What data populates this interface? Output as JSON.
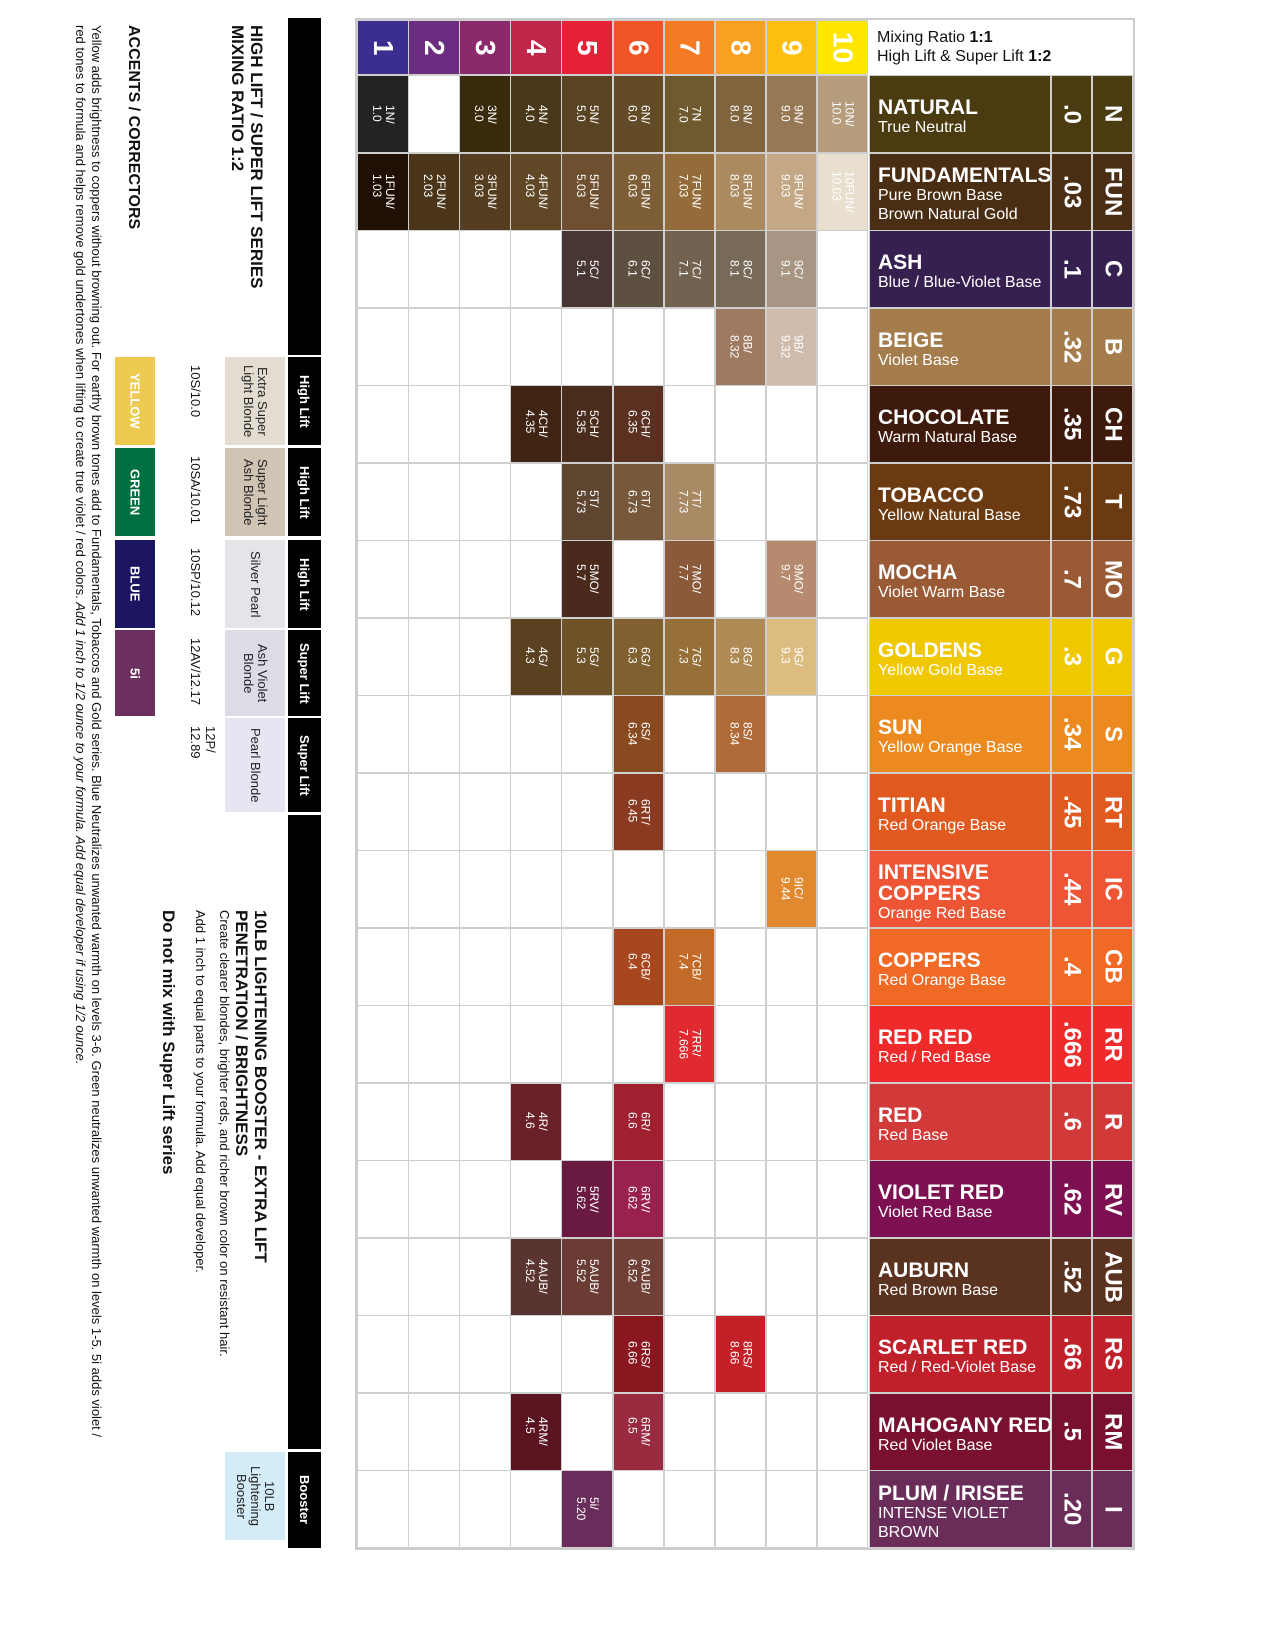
{
  "header": {
    "line1_prefix": "Mixing Ratio ",
    "line1_ratio": "1:1",
    "line2_prefix": "High Lift & Super Lift ",
    "line2_ratio": "1:2"
  },
  "levels": [
    {
      "label": "1",
      "color": "#3a2f90"
    },
    {
      "label": "2",
      "color": "#6a2d80"
    },
    {
      "label": "3",
      "color": "#8a2a6a"
    },
    {
      "label": "4",
      "color": "#c0254a"
    },
    {
      "label": "5",
      "color": "#e52138"
    },
    {
      "label": "6",
      "color": "#f05528"
    },
    {
      "label": "7",
      "color": "#f57a25"
    },
    {
      "label": "8",
      "color": "#f9a020"
    },
    {
      "label": "9",
      "color": "#fdc010"
    },
    {
      "label": "10",
      "color": "#ffe600"
    }
  ],
  "series": [
    {
      "letter": "N",
      "code": ".0",
      "name": "NATURAL",
      "desc": "True Neutral",
      "color": "#4b3b10",
      "cells": {
        "1": {
          "label": "1N/\n1.0",
          "color": "#232122"
        },
        "3": {
          "label": "3N/\n3.0",
          "color": "#3a2a0c"
        },
        "4": {
          "label": "4N/\n4.0",
          "color": "#4a381a"
        },
        "5": {
          "label": "5N/\n5.0",
          "color": "#584322"
        },
        "6": {
          "label": "6N/\n6.0",
          "color": "#644b28"
        },
        "7": {
          "label": "7N\n7.0",
          "color": "#6e5a2e"
        },
        "8": {
          "label": "8N/\n8.0",
          "color": "#80643e"
        },
        "9": {
          "label": "9N/\n9.0",
          "color": "#967954"
        },
        "10": {
          "label": "10N/\n10.0",
          "color": "#b49c7c"
        }
      }
    },
    {
      "letter": "FUN",
      "code": ".03",
      "name": "FUNDAMENTALS",
      "desc": "Pure Brown Base\nBrown Natural Gold",
      "color": "#4a2e14",
      "cells": {
        "1": {
          "label": "1FUN/\n1.03",
          "color": "#200f04"
        },
        "2": {
          "label": "2FUN/\n2.03",
          "color": "#4a3518"
        },
        "3": {
          "label": "3FUN/\n3.03",
          "color": "#553e20"
        },
        "4": {
          "label": "4FUN/\n4.03",
          "color": "#604726"
        },
        "5": {
          "label": "5FUN/\n5.03",
          "color": "#6e5030"
        },
        "6": {
          "label": "6FUN/\n6.03",
          "color": "#7e5e36"
        },
        "7": {
          "label": "7FUN/\n7.03",
          "color": "#946c3a"
        },
        "8": {
          "label": "8FUN/\n8.03",
          "color": "#ab8a60"
        },
        "9": {
          "label": "9FUN/\n9.03",
          "color": "#c4a886"
        },
        "10": {
          "label": "10FUN/\n10.03",
          "color": "#e8dfcf"
        }
      }
    },
    {
      "letter": "C",
      "code": ".1",
      "name": "ASH",
      "desc": "Blue / Blue-Violet Base",
      "color": "#35204f",
      "cells": {
        "5": {
          "label": "5C/\n5.1",
          "color": "#483634"
        },
        "6": {
          "label": "6C/\n6.1",
          "color": "#5e5040"
        },
        "7": {
          "label": "7C/\n7.1",
          "color": "#726250"
        },
        "8": {
          "label": "8C/\n8.1",
          "color": "#786a58"
        },
        "9": {
          "label": "9C/\n9.1",
          "color": "#a89584"
        }
      }
    },
    {
      "letter": "B",
      "code": ".32",
      "name": "BEIGE",
      "desc": "Violet Base",
      "color": "#a57c4c",
      "cells": {
        "8": {
          "label": "8B/\n8.32",
          "color": "#9e7a60"
        },
        "9": {
          "label": "9B/\n9.32",
          "color": "#d0bcad"
        }
      }
    },
    {
      "letter": "CH",
      "code": ".35",
      "name": "CHOCOLATE",
      "desc": "Warm Natural Base",
      "color": "#3d1a0c",
      "cells": {
        "4": {
          "label": "4CH/\n4.35",
          "color": "#3f2414"
        },
        "5": {
          "label": "5CH/\n5.35",
          "color": "#4a2c1c"
        },
        "6": {
          "label": "6CH/\n6.35",
          "color": "#5a3020"
        }
      }
    },
    {
      "letter": "T",
      "code": ".73",
      "name": "TOBACCO",
      "desc": "Yellow Natural Base",
      "color": "#6b3a10",
      "cells": {
        "5": {
          "label": "5T/\n5.73",
          "color": "#5e4530"
        },
        "6": {
          "label": "6T/\n6.73",
          "color": "#78583a"
        },
        "7": {
          "label": "7T/\n7.73",
          "color": "#a88a64"
        }
      }
    },
    {
      "letter": "MO",
      "code": ".7",
      "name": "MOCHA",
      "desc": "Violet Warm Base",
      "color": "#9a5a35",
      "cells": {
        "5": {
          "label": "5MO/\n5.7",
          "color": "#4a2a1c"
        },
        "7": {
          "label": "7MO/\n7.7",
          "color": "#8a5a3a"
        },
        "9": {
          "label": "9MO/\n9.7",
          "color": "#b58a6e"
        }
      }
    },
    {
      "letter": "G",
      "code": ".3",
      "name": "GOLDENS",
      "desc": "Yellow Gold Base",
      "color": "#f0c800",
      "cells": {
        "4": {
          "label": "4G/\n4.3",
          "color": "#5a4220"
        },
        "5": {
          "label": "5G/\n5.3",
          "color": "#6e5228"
        },
        "6": {
          "label": "6G/\n6.3",
          "color": "#80602e"
        },
        "7": {
          "label": "7G/\n7.3",
          "color": "#967038"
        },
        "8": {
          "label": "8G/\n8.3",
          "color": "#b08a54"
        },
        "9": {
          "label": "9G/\n9.3",
          "color": "#dcbc80"
        }
      }
    },
    {
      "letter": "S",
      "code": ".34",
      "name": "SUN",
      "desc": "Yellow Orange Base",
      "color": "#ec8a20",
      "cells": {
        "6": {
          "label": "6S/\n6.34",
          "color": "#8a4a20"
        },
        "8": {
          "label": "8S/\n8.34",
          "color": "#b06a38"
        }
      }
    },
    {
      "letter": "RT",
      "code": ".45",
      "name": "TITIAN",
      "desc": "Red Orange Base",
      "color": "#e05a20",
      "cells": {
        "6": {
          "label": "6RT/\n6.45",
          "color": "#8a3a20"
        }
      }
    },
    {
      "letter": "IC",
      "code": ".44",
      "name": "INTENSIVE\nCOPPERS",
      "desc": "Orange Red Base",
      "color": "#ee5535",
      "cells": {
        "9": {
          "label": "9IC/\n9.44",
          "color": "#e0892e"
        }
      }
    },
    {
      "letter": "CB",
      "code": ".4",
      "name": "COPPERS",
      "desc": "Red Orange Base",
      "color": "#f06a25",
      "cells": {
        "6": {
          "label": "6CB/\n6.4",
          "color": "#a8461e"
        },
        "7": {
          "label": "7CB/\n7.4",
          "color": "#c46a28"
        }
      }
    },
    {
      "letter": "RR",
      "code": ".666",
      "name": "RED RED",
      "desc": "Red / Red Base",
      "color": "#ee2a2a",
      "cells": {
        "7": {
          "label": "7RR/\n7.666",
          "color": "#e02a30"
        }
      }
    },
    {
      "letter": "R",
      "code": ".6",
      "name": "RED",
      "desc": "Red Base",
      "color": "#d23a3a",
      "cells": {
        "4": {
          "label": "4R/\n4.6",
          "color": "#6a2028"
        },
        "6": {
          "label": "6R/\n6.6",
          "color": "#a02030"
        }
      }
    },
    {
      "letter": "RV",
      "code": ".62",
      "name": "VIOLET RED",
      "desc": "Violet Red Base",
      "color": "#7c1050",
      "cells": {
        "5": {
          "label": "5RV/\n5.62",
          "color": "#6a1a40"
        },
        "6": {
          "label": "6RV/\n6.62",
          "color": "#9a2050"
        }
      }
    },
    {
      "letter": "AUB",
      "code": ".52",
      "name": "AUBURN",
      "desc": "Red Brown Base",
      "color": "#5a3220",
      "cells": {
        "4": {
          "label": "4AUB/\n4.52",
          "color": "#5a3430"
        },
        "5": {
          "label": "5AUB/\n5.52",
          "color": "#6a3c34"
        },
        "6": {
          "label": "6AUB/\n6.52",
          "color": "#704036"
        }
      }
    },
    {
      "letter": "RS",
      "code": ".66",
      "name": "SCARLET RED",
      "desc": "Red / Red-Violet Base",
      "color": "#c0202a",
      "cells": {
        "6": {
          "label": "6RS/\n6.66",
          "color": "#8a1620"
        },
        "8": {
          "label": "8RS/\n8.66",
          "color": "#c42028"
        }
      }
    },
    {
      "letter": "RM",
      "code": ".5",
      "name": "MAHOGANY RED",
      "desc": "Red Violet Base",
      "color": "#7a1030",
      "cells": {
        "4": {
          "label": "4RM/\n4.5",
          "color": "#5a1420"
        },
        "6": {
          "label": "6RM/\n6.5",
          "color": "#9a2a40"
        }
      }
    },
    {
      "letter": "I",
      "code": ".20",
      "name": "PLUM / IRISEE",
      "desc": "INTENSE VIOLET\nBROWN",
      "color": "#6a2d5a",
      "cells": {
        "5": {
          "label": "5i/\n5.20",
          "color": "#6a2c5a"
        }
      }
    }
  ],
  "left": {
    "title": "HIGH LIFT / SUPER LIFT SERIES",
    "subtitle": "MIXING RATIO 1:2",
    "lift_items": [
      {
        "tag": "High Lift",
        "name": "Extra Super Light Blonde",
        "code": "10S/10.0",
        "color": "#e2ddd0"
      },
      {
        "tag": "High Lift",
        "name": "Super Light Ash Blonde",
        "code": "10SA/10.01",
        "color": "#d0c4b5"
      },
      {
        "tag": "High Lift",
        "name": "Silver Pearl",
        "code": "10SP/10.12",
        "color": "#e6e4e8"
      },
      {
        "tag": "Super Lift",
        "name": "Ash Violet Blonde",
        "code": "12AV/12.17",
        "color": "#dddbe6"
      },
      {
        "tag": "Super Lift",
        "name": "Pearl Blonde",
        "code": "12P/\n12.89",
        "color": "#e6e6f2"
      }
    ],
    "booster": {
      "tag": "Booster",
      "name": "10LB Lightening Booster",
      "color": "#d4ecf8",
      "title": "10LB LIGHTENING BOOSTER - EXTRA LIFT\nPENETRATION / BRIGHTNESS",
      "line1": "Create clearer blondes, brighter reds, and richer brown color on resistant hair.",
      "line2": "Add 1 inch to equal parts to your formula. Add equal developer.",
      "warning": "Do not mix with Super Lift series"
    },
    "accents_title": "ACCENTS / CORRECTORS",
    "accents": [
      {
        "label": "YELLOW",
        "color": "#eccb50"
      },
      {
        "label": "GREEN",
        "color": "#007040"
      },
      {
        "label": "BLUE",
        "color": "#1c1560"
      },
      {
        "label": "5i",
        "color": "#6b2f60"
      }
    ],
    "footer_line1": "Yellow adds brightness to coppers without browning out. For earthy brown tones add to Fundamentals, Tobaccos and Gold series. Blue Neutralizes unwanted warmth on levels 3-6. Green neutralizes unwanted warmth on levels 1-5. 5i adds violet /",
    "footer_line2_plain": "red tones to formula and helps remove gold undertones when lifting to create true violet / red colors. ",
    "footer_line2_italic": "Add 1 inch to 1/2 ounce to your formula. Add equal developer if using 1/2 ounce."
  }
}
